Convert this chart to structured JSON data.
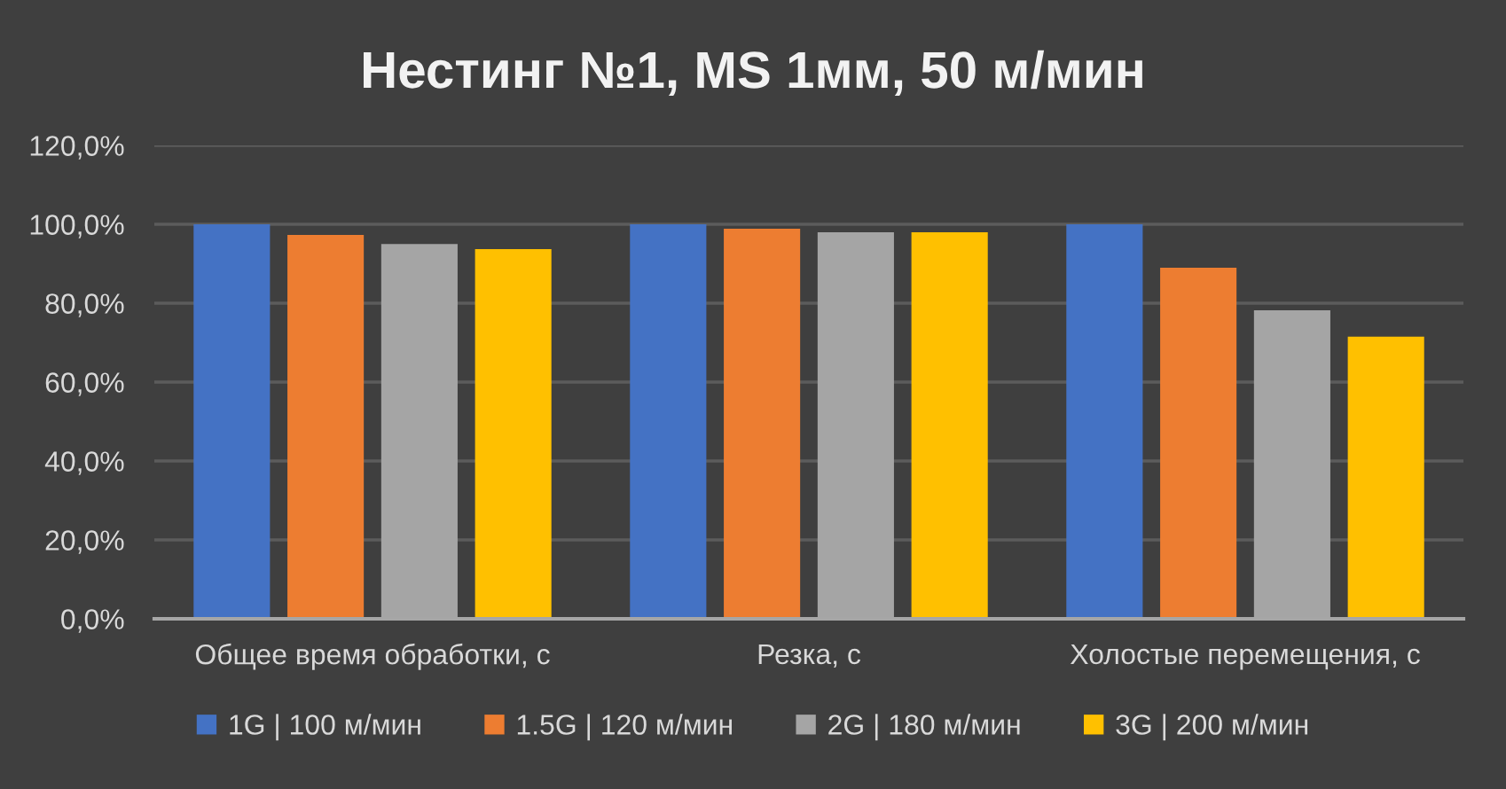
{
  "chart_data": {
    "type": "bar",
    "title": "Нестинг №1, MS 1мм, 50 м/мин",
    "categories": [
      "Общее время обработки, с",
      "Резка, с",
      "Холостые перемещения, с"
    ],
    "series": [
      {
        "name": "1G | 100 м/мин",
        "color": "#4472c4",
        "values": [
          100.0,
          100.0,
          100.0
        ]
      },
      {
        "name": "1.5G | 120 м/мин",
        "color": "#ed7d31",
        "values": [
          97.3,
          98.9,
          89.0
        ]
      },
      {
        "name": "2G | 180 м/мин",
        "color": "#a5a5a5",
        "values": [
          95.0,
          98.0,
          78.2
        ]
      },
      {
        "name": "3G | 200 м/мин",
        "color": "#ffc000",
        "values": [
          93.7,
          98.0,
          71.5
        ]
      }
    ],
    "ylim": [
      0,
      120
    ],
    "yticks": [
      {
        "value": 0,
        "label": "0,0%"
      },
      {
        "value": 20,
        "label": "20,0%"
      },
      {
        "value": 40,
        "label": "40,0%"
      },
      {
        "value": 60,
        "label": "60,0%"
      },
      {
        "value": 80,
        "label": "80,0%"
      },
      {
        "value": 100,
        "label": "100,0%"
      },
      {
        "value": 120,
        "label": "120,0%"
      }
    ],
    "grid": "y",
    "legend": "bottom"
  }
}
